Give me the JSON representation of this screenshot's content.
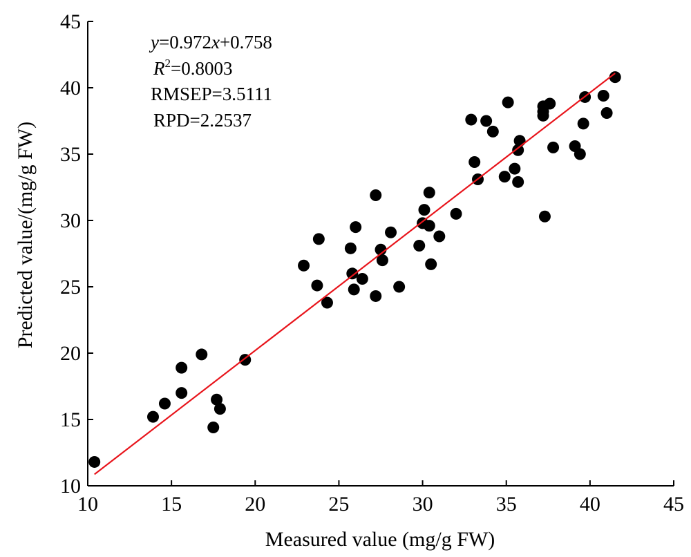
{
  "chart_data": {
    "type": "scatter",
    "xlabel": "Measured value (mg/g FW)",
    "ylabel": "Predicted value/(mg/g FW)",
    "xlim": [
      10,
      45
    ],
    "ylim": [
      10,
      45
    ],
    "xticks": [
      "10",
      "15",
      "20",
      "25",
      "30",
      "35",
      "40",
      "45"
    ],
    "yticks": [
      "10",
      "15",
      "20",
      "25",
      "30",
      "35",
      "40",
      "45"
    ],
    "grid": false,
    "annotations": {
      "equation": {
        "y": "y",
        "rhs": "=0.972",
        "x": "x",
        "tail": "+0.758"
      },
      "r2": {
        "symbol": "R",
        "sup": "2",
        "value": "=0.8003"
      },
      "rmsep": "RMSEP=3.5111",
      "rpd": "RPD=2.2537"
    },
    "fit_line": {
      "slope": 0.972,
      "intercept": 0.758,
      "x_range": [
        10.4,
        41.5
      ],
      "color": "#e8141b"
    },
    "point_color": "#000000",
    "points": [
      [
        10.4,
        11.8
      ],
      [
        13.9,
        15.2
      ],
      [
        14.6,
        16.2
      ],
      [
        15.6,
        18.9
      ],
      [
        15.6,
        17.0
      ],
      [
        16.8,
        19.9
      ],
      [
        17.5,
        14.4
      ],
      [
        17.7,
        16.5
      ],
      [
        17.9,
        15.8
      ],
      [
        19.4,
        19.5
      ],
      [
        22.9,
        26.6
      ],
      [
        23.7,
        25.1
      ],
      [
        23.8,
        28.6
      ],
      [
        24.3,
        23.8
      ],
      [
        25.7,
        27.9
      ],
      [
        25.8,
        26.0
      ],
      [
        25.9,
        24.8
      ],
      [
        26.0,
        29.5
      ],
      [
        26.4,
        25.6
      ],
      [
        27.2,
        31.9
      ],
      [
        27.2,
        24.3
      ],
      [
        27.5,
        27.8
      ],
      [
        27.6,
        27.0
      ],
      [
        28.1,
        29.1
      ],
      [
        28.6,
        25.0
      ],
      [
        29.8,
        28.1
      ],
      [
        30.0,
        29.8
      ],
      [
        30.1,
        30.8
      ],
      [
        30.4,
        32.1
      ],
      [
        30.4,
        29.6
      ],
      [
        30.5,
        26.7
      ],
      [
        31.0,
        28.8
      ],
      [
        32.0,
        30.5
      ],
      [
        32.9,
        37.6
      ],
      [
        33.1,
        34.4
      ],
      [
        33.3,
        33.1
      ],
      [
        33.8,
        37.5
      ],
      [
        34.2,
        36.7
      ],
      [
        34.9,
        33.3
      ],
      [
        35.1,
        38.9
      ],
      [
        35.5,
        33.9
      ],
      [
        35.7,
        35.3
      ],
      [
        35.7,
        32.9
      ],
      [
        35.8,
        36.0
      ],
      [
        37.2,
        38.6
      ],
      [
        37.2,
        38.2
      ],
      [
        37.2,
        37.9
      ],
      [
        37.3,
        30.3
      ],
      [
        37.6,
        38.8
      ],
      [
        37.8,
        35.5
      ],
      [
        39.1,
        35.6
      ],
      [
        39.4,
        35.0
      ],
      [
        39.6,
        37.3
      ],
      [
        39.7,
        39.3
      ],
      [
        40.8,
        39.4
      ],
      [
        41.0,
        38.1
      ],
      [
        41.5,
        40.8
      ]
    ]
  }
}
